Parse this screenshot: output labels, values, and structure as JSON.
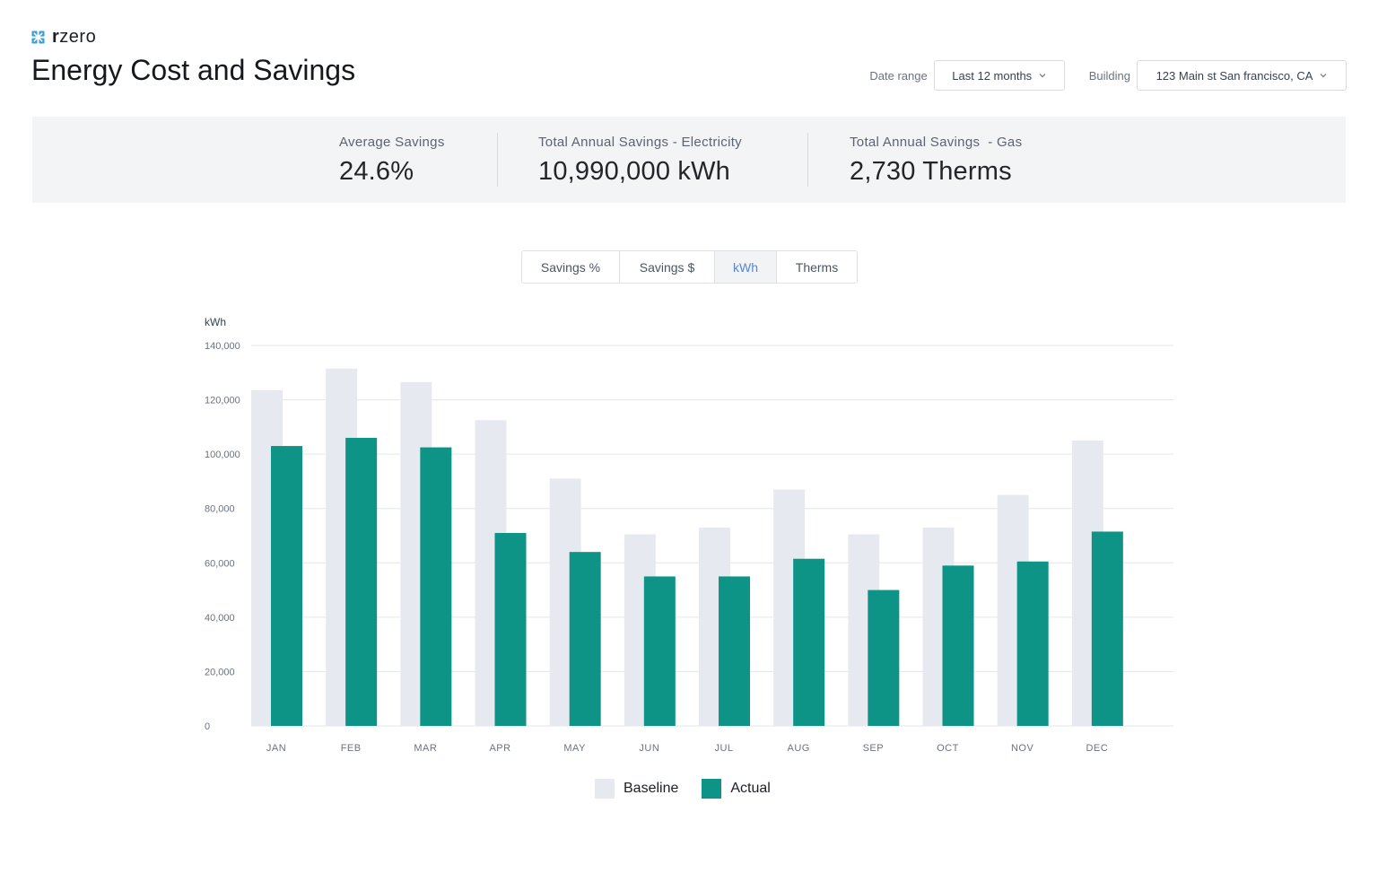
{
  "brand": {
    "name_bold": "r",
    "name_rest": "zero",
    "logo_icon": "snowflake-icon"
  },
  "page": {
    "title": "Energy Cost and Savings"
  },
  "filters": {
    "date_range": {
      "label": "Date range",
      "value": "Last 12 months"
    },
    "building": {
      "label": "Building",
      "value": "123 Main st San francisco, CA"
    }
  },
  "stats": [
    {
      "label": "Average Savings",
      "value": "24.6%"
    },
    {
      "label": "Total Annual Savings - Electricity",
      "value": "10,990,000 kWh"
    },
    {
      "label": "Total Annual Savings  - Gas",
      "value": "2,730 Therms"
    }
  ],
  "tabs": [
    {
      "label": "Savings %",
      "active": false
    },
    {
      "label": "Savings $",
      "active": false
    },
    {
      "label": "kWh",
      "active": true
    },
    {
      "label": "Therms",
      "active": false
    }
  ],
  "colors": {
    "baseline": "#e6eaf0",
    "actual": "#0e9486",
    "accent": "#5b86d6",
    "logo": "#3b9fd8"
  },
  "chart_data": {
    "type": "bar",
    "ylabel": "kWh",
    "ylim": [
      0,
      140000
    ],
    "yticks": [
      0,
      20000,
      40000,
      60000,
      80000,
      100000,
      120000,
      140000
    ],
    "ytick_labels": [
      "0",
      "20,000",
      "40,000",
      "60,000",
      "80,000",
      "100,000",
      "120,000",
      "140,000"
    ],
    "categories": [
      "JAN",
      "FEB",
      "MAR",
      "APR",
      "MAY",
      "JUN",
      "JUL",
      "AUG",
      "SEP",
      "OCT",
      "NOV",
      "DEC"
    ],
    "series": [
      {
        "name": "Baseline",
        "values": [
          123500,
          131500,
          126500,
          112500,
          91000,
          70500,
          73000,
          87000,
          70500,
          73000,
          85000,
          105000
        ]
      },
      {
        "name": "Actual",
        "values": [
          103000,
          106000,
          102500,
          71000,
          64000,
          55000,
          55000,
          61500,
          50000,
          59000,
          60500,
          71500
        ]
      }
    ],
    "grid": true,
    "legend": "bottom-center"
  }
}
